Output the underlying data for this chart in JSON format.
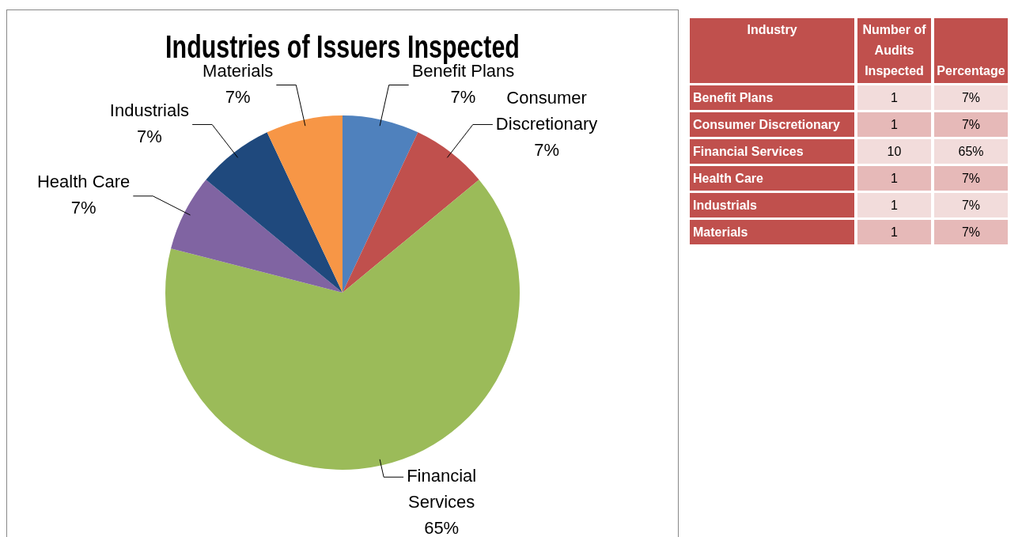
{
  "chart_data": [
    {
      "type": "pie",
      "title": "Industries of Issuers Inspected",
      "categories": [
        "Benefit Plans",
        "Consumer Discretionary",
        "Financial Services",
        "Health Care",
        "Industrials",
        "Materials"
      ],
      "values": [
        7,
        7,
        65,
        7,
        7,
        7
      ],
      "value_labels": [
        "7%",
        "7%",
        "65%",
        "7%",
        "7%",
        "7%"
      ],
      "colors": [
        "#4f81bd",
        "#c0504d",
        "#9bbb59",
        "#8064a2",
        "#1f497d",
        "#f79646"
      ],
      "legend": false
    },
    {
      "type": "other",
      "xlabel": "Industry",
      "data_labels": true,
      "categories": [
        "Benefit Plans",
        "Consumer Discretionary",
        "Financial Services",
        "Health Care",
        "Industrials",
        "Materials"
      ],
      "series": [
        {
          "name": "Number of Audits Inspected",
          "values": [
            1,
            1,
            10,
            1,
            1,
            1
          ],
          "colors": [
            "#f2dcdb",
            "#e6b9b8",
            "#f2dcdb",
            "#e6b9b8",
            "#f2dcdb",
            "#e6b9b8"
          ]
        },
        {
          "name": "Percentage",
          "values": [
            7,
            7,
            65,
            7,
            7,
            7
          ],
          "value_labels": [
            "7%",
            "7%",
            "65%",
            "7%",
            "7%",
            "7%"
          ],
          "colors": [
            "#f2dcdb",
            "#e6b9b8",
            "#f2dcdb",
            "#e6b9b8",
            "#f2dcdb",
            "#e6b9b8"
          ]
        }
      ]
    }
  ]
}
